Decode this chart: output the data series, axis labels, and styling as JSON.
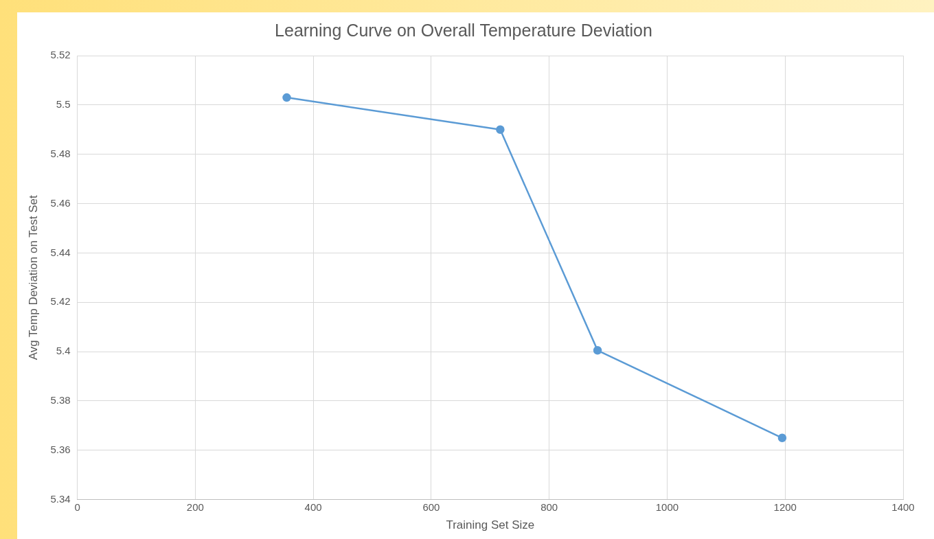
{
  "chart_data": {
    "type": "line",
    "title": "Learning Curve on Overall Temperature Deviation",
    "xlabel": "Training Set Size",
    "ylabel": "Avg Temp Deviation on Test Set",
    "x": [
      355,
      717,
      882,
      1195
    ],
    "series": [
      {
        "color": "#5b9bd5",
        "values": [
          5.503,
          5.49,
          5.4005,
          5.365
        ]
      }
    ],
    "xlim": [
      0,
      1400
    ],
    "xticks": [
      0,
      200,
      400,
      600,
      800,
      1000,
      1200,
      1400
    ],
    "ylim": [
      5.34,
      5.52
    ],
    "yticks": [
      5.34,
      5.36,
      5.38,
      5.4,
      5.42,
      5.44,
      5.46,
      5.48,
      5.5,
      5.52
    ],
    "grid": true,
    "legend": false,
    "marker": "circle",
    "line_style": "solid"
  }
}
